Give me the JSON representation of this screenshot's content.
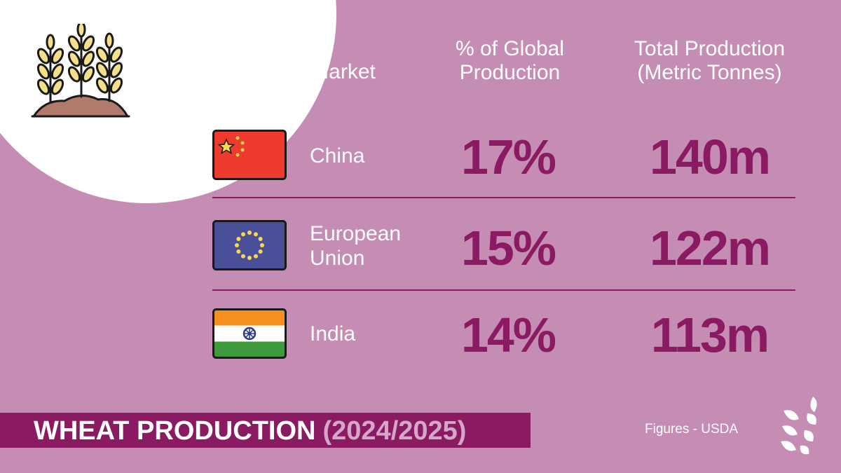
{
  "headers": {
    "market": "Market",
    "share": "% of Global Production",
    "total": "Total Production (Metric Tonnes)"
  },
  "rows": [
    {
      "market": "China",
      "share": "17%",
      "total": "140m",
      "flag": "china-flag-icon"
    },
    {
      "market": "European Union",
      "share": "15%",
      "total": "122m",
      "flag": "eu-flag-icon"
    },
    {
      "market": "India",
      "share": "14%",
      "total": "113m",
      "flag": "india-flag-icon"
    }
  ],
  "banner": {
    "title": "WHEAT PRODUCTION",
    "years": "(2024/2025)"
  },
  "source": "Figures - USDA",
  "icons": {
    "illustration": "wheat-field-icon",
    "logo": "wheat-logo-icon"
  },
  "colors": {
    "background": "#c68db4",
    "accent": "#8a1b63",
    "years": "#d5a6c8"
  }
}
